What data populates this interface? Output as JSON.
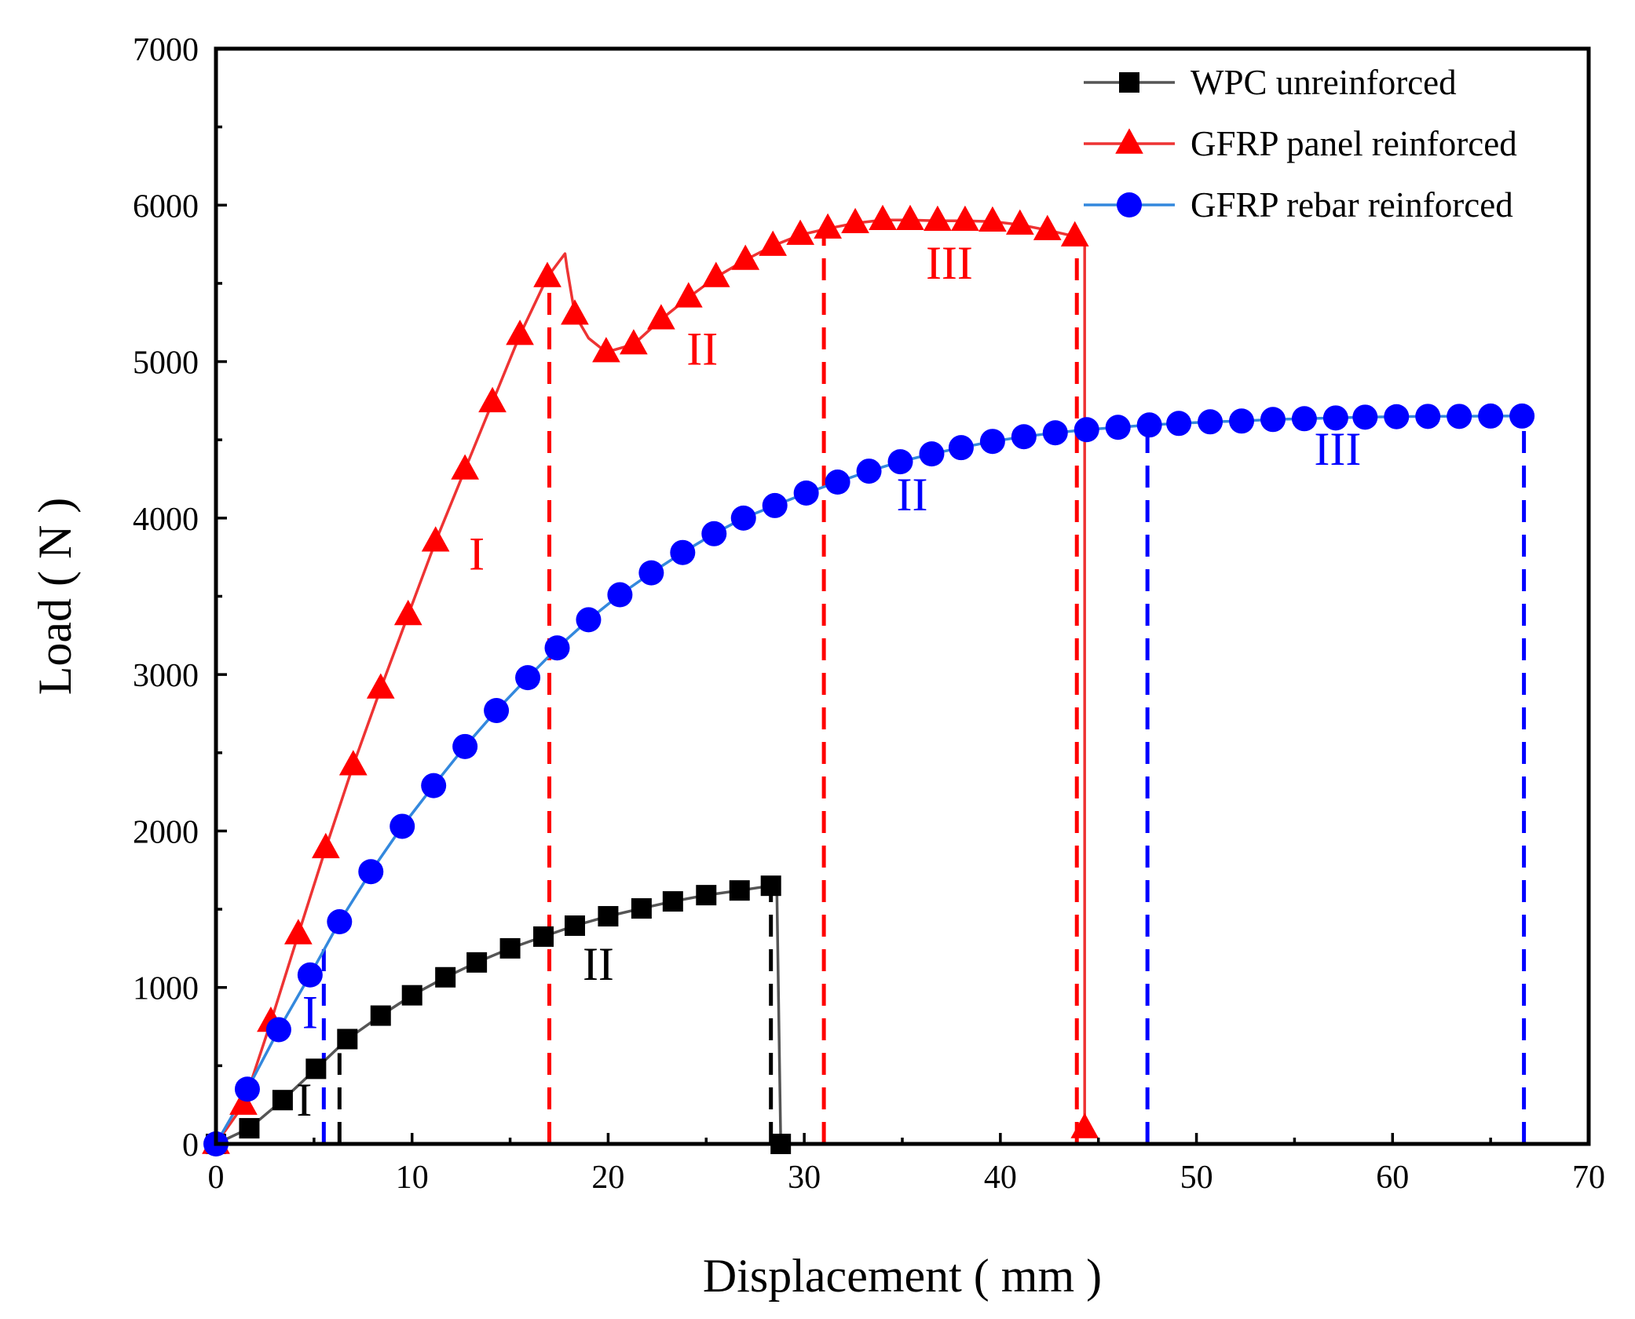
{
  "chart_data": {
    "type": "line",
    "title": "",
    "xlabel": "Displacement ( mm )",
    "ylabel": "Load ( N )",
    "xlim": [
      0,
      70
    ],
    "ylim": [
      0,
      7000
    ],
    "x_ticks": [
      0,
      10,
      20,
      30,
      40,
      50,
      60,
      70
    ],
    "y_ticks": [
      0,
      1000,
      2000,
      3000,
      4000,
      5000,
      6000,
      7000
    ],
    "x_tick_labels": [
      "0",
      "10",
      "20",
      "30",
      "40",
      "50",
      "60",
      "70"
    ],
    "y_tick_labels": [
      "0",
      "1000",
      "2000",
      "3000",
      "4000",
      "5000",
      "6000",
      "7000"
    ],
    "legend_position": "top-right",
    "series": [
      {
        "name": "WPC unreinforced",
        "color": "#000000",
        "line_color": "#555555",
        "marker": "square",
        "line": [
          [
            0,
            0
          ],
          [
            1.7,
            100
          ],
          [
            3.4,
            280
          ],
          [
            5.1,
            480
          ],
          [
            6.7,
            670
          ],
          [
            8.4,
            820
          ],
          [
            10.0,
            950
          ],
          [
            11.7,
            1065
          ],
          [
            13.3,
            1160
          ],
          [
            15.0,
            1250
          ],
          [
            16.7,
            1325
          ],
          [
            18.3,
            1395
          ],
          [
            20.0,
            1455
          ],
          [
            21.7,
            1505
          ],
          [
            23.3,
            1550
          ],
          [
            25.0,
            1590
          ],
          [
            26.7,
            1620
          ],
          [
            28.3,
            1650
          ],
          [
            28.6,
            1640
          ],
          [
            28.8,
            0
          ],
          [
            28.8,
            0
          ]
        ],
        "points": [
          [
            0,
            0
          ],
          [
            1.7,
            100
          ],
          [
            3.4,
            280
          ],
          [
            5.1,
            480
          ],
          [
            6.7,
            670
          ],
          [
            8.4,
            820
          ],
          [
            10.0,
            950
          ],
          [
            11.7,
            1065
          ],
          [
            13.3,
            1160
          ],
          [
            15.0,
            1250
          ],
          [
            16.7,
            1325
          ],
          [
            18.3,
            1395
          ],
          [
            20.0,
            1455
          ],
          [
            21.7,
            1505
          ],
          [
            23.3,
            1550
          ],
          [
            25.0,
            1590
          ],
          [
            26.7,
            1620
          ],
          [
            28.3,
            1650
          ],
          [
            28.8,
            0
          ]
        ]
      },
      {
        "name": "GFRP panel reinforced",
        "color": "#ff0000",
        "line_color": "#ee3333",
        "marker": "triangle",
        "line": [
          [
            0,
            0
          ],
          [
            1.4,
            250
          ],
          [
            2.8,
            780
          ],
          [
            4.2,
            1340
          ],
          [
            5.6,
            1890
          ],
          [
            7.0,
            2420
          ],
          [
            8.4,
            2910
          ],
          [
            9.8,
            3380
          ],
          [
            11.2,
            3850
          ],
          [
            12.7,
            4310
          ],
          [
            14.1,
            4740
          ],
          [
            15.5,
            5170
          ],
          [
            16.9,
            5540
          ],
          [
            17.5,
            5640
          ],
          [
            17.8,
            5690
          ],
          [
            17.9,
            5600
          ],
          [
            18.3,
            5300
          ],
          [
            19.0,
            5150
          ],
          [
            19.9,
            5060
          ],
          [
            21.3,
            5110
          ],
          [
            22.7,
            5270
          ],
          [
            24.1,
            5410
          ],
          [
            25.5,
            5540
          ],
          [
            27.0,
            5650
          ],
          [
            28.4,
            5740
          ],
          [
            29.8,
            5810
          ],
          [
            31.2,
            5850
          ],
          [
            32.6,
            5885
          ],
          [
            34.0,
            5905
          ],
          [
            35.4,
            5905
          ],
          [
            36.8,
            5900
          ],
          [
            38.2,
            5900
          ],
          [
            39.6,
            5895
          ],
          [
            41.0,
            5875
          ],
          [
            42.4,
            5840
          ],
          [
            43.8,
            5800
          ],
          [
            44.3,
            5760
          ],
          [
            44.3,
            100
          ]
        ],
        "points": [
          [
            0,
            0
          ],
          [
            1.4,
            250
          ],
          [
            2.8,
            780
          ],
          [
            4.2,
            1340
          ],
          [
            5.6,
            1890
          ],
          [
            7.0,
            2420
          ],
          [
            8.4,
            2910
          ],
          [
            9.8,
            3380
          ],
          [
            11.2,
            3850
          ],
          [
            12.7,
            4310
          ],
          [
            14.1,
            4740
          ],
          [
            15.5,
            5170
          ],
          [
            16.9,
            5540
          ],
          [
            18.3,
            5300
          ],
          [
            19.9,
            5060
          ],
          [
            21.3,
            5110
          ],
          [
            22.7,
            5270
          ],
          [
            24.1,
            5410
          ],
          [
            25.5,
            5540
          ],
          [
            27.0,
            5650
          ],
          [
            28.4,
            5740
          ],
          [
            29.8,
            5810
          ],
          [
            31.2,
            5850
          ],
          [
            32.6,
            5885
          ],
          [
            34.0,
            5905
          ],
          [
            35.4,
            5905
          ],
          [
            36.8,
            5900
          ],
          [
            38.2,
            5900
          ],
          [
            39.6,
            5895
          ],
          [
            41.0,
            5875
          ],
          [
            42.4,
            5840
          ],
          [
            43.8,
            5800
          ],
          [
            44.3,
            100
          ]
        ]
      },
      {
        "name": "GFRP rebar reinforced",
        "color": "#0000ff",
        "line_color": "#3388dd",
        "marker": "circle",
        "line": [
          [
            0,
            0
          ],
          [
            1.6,
            350
          ],
          [
            3.2,
            730
          ],
          [
            4.8,
            1080
          ],
          [
            6.3,
            1420
          ],
          [
            7.9,
            1740
          ],
          [
            9.5,
            2030
          ],
          [
            11.1,
            2290
          ],
          [
            12.7,
            2540
          ],
          [
            14.3,
            2770
          ],
          [
            15.9,
            2980
          ],
          [
            17.4,
            3170
          ],
          [
            19.0,
            3350
          ],
          [
            20.6,
            3510
          ],
          [
            22.2,
            3650
          ],
          [
            23.8,
            3780
          ],
          [
            25.4,
            3900
          ],
          [
            26.9,
            4000
          ],
          [
            28.5,
            4080
          ],
          [
            30.1,
            4160
          ],
          [
            31.7,
            4230
          ],
          [
            33.3,
            4300
          ],
          [
            34.9,
            4360
          ],
          [
            36.5,
            4410
          ],
          [
            38.0,
            4450
          ],
          [
            39.6,
            4490
          ],
          [
            41.2,
            4520
          ],
          [
            42.8,
            4545
          ],
          [
            44.4,
            4565
          ],
          [
            46.0,
            4580
          ],
          [
            47.6,
            4595
          ],
          [
            49.1,
            4605
          ],
          [
            50.7,
            4615
          ],
          [
            52.3,
            4620
          ],
          [
            53.9,
            4630
          ],
          [
            55.5,
            4635
          ],
          [
            57.1,
            4640
          ],
          [
            58.6,
            4645
          ],
          [
            60.2,
            4648
          ],
          [
            61.8,
            4650
          ],
          [
            63.4,
            4650
          ],
          [
            65.0,
            4652
          ],
          [
            66.6,
            4652
          ]
        ],
        "points": [
          [
            0,
            0
          ],
          [
            1.6,
            350
          ],
          [
            3.2,
            730
          ],
          [
            4.8,
            1080
          ],
          [
            6.3,
            1420
          ],
          [
            7.9,
            1740
          ],
          [
            9.5,
            2030
          ],
          [
            11.1,
            2290
          ],
          [
            12.7,
            2540
          ],
          [
            14.3,
            2770
          ],
          [
            15.9,
            2980
          ],
          [
            17.4,
            3170
          ],
          [
            19.0,
            3350
          ],
          [
            20.6,
            3510
          ],
          [
            22.2,
            3650
          ],
          [
            23.8,
            3780
          ],
          [
            25.4,
            3900
          ],
          [
            26.9,
            4000
          ],
          [
            28.5,
            4080
          ],
          [
            30.1,
            4160
          ],
          [
            31.7,
            4230
          ],
          [
            33.3,
            4300
          ],
          [
            34.9,
            4360
          ],
          [
            36.5,
            4410
          ],
          [
            38.0,
            4450
          ],
          [
            39.6,
            4490
          ],
          [
            41.2,
            4520
          ],
          [
            42.8,
            4545
          ],
          [
            44.4,
            4565
          ],
          [
            46.0,
            4580
          ],
          [
            47.6,
            4595
          ],
          [
            49.1,
            4605
          ],
          [
            50.7,
            4615
          ],
          [
            52.3,
            4620
          ],
          [
            53.9,
            4630
          ],
          [
            55.5,
            4635
          ],
          [
            57.1,
            4640
          ],
          [
            58.6,
            4645
          ],
          [
            60.2,
            4648
          ],
          [
            61.8,
            4650
          ],
          [
            63.4,
            4650
          ],
          [
            65.0,
            4652
          ],
          [
            66.6,
            4652
          ]
        ]
      }
    ],
    "stage_dividers": [
      {
        "x": 6.3,
        "y_top": 580,
        "color": "#000000"
      },
      {
        "x": 28.3,
        "y_top": 1650,
        "color": "#000000"
      },
      {
        "x": 17.0,
        "y_top": 5540,
        "color": "#ff0000"
      },
      {
        "x": 31.0,
        "y_top": 5850,
        "color": "#ff0000"
      },
      {
        "x": 43.9,
        "y_top": 5800,
        "color": "#ff0000"
      },
      {
        "x": 5.5,
        "y_top": 1300,
        "color": "#0000ff"
      },
      {
        "x": 47.5,
        "y_top": 4595,
        "color": "#0000ff"
      },
      {
        "x": 66.7,
        "y_top": 4652,
        "color": "#0000ff"
      }
    ],
    "annotations": [
      {
        "text": "I",
        "x": 4.5,
        "y": 180,
        "color": "#000000"
      },
      {
        "text": "II",
        "x": 19.5,
        "y": 1050,
        "color": "#000000"
      },
      {
        "text": "I",
        "x": 4.8,
        "y": 740,
        "color": "#0000ff"
      },
      {
        "text": "II",
        "x": 35.5,
        "y": 4050,
        "color": "#0000ff"
      },
      {
        "text": "III",
        "x": 57.2,
        "y": 4340,
        "color": "#0000ff"
      },
      {
        "text": "I",
        "x": 13.3,
        "y": 3670,
        "color": "#ff0000"
      },
      {
        "text": "II",
        "x": 24.8,
        "y": 4980,
        "color": "#ff0000"
      },
      {
        "text": "III",
        "x": 37.4,
        "y": 5530,
        "color": "#ff0000"
      }
    ]
  }
}
